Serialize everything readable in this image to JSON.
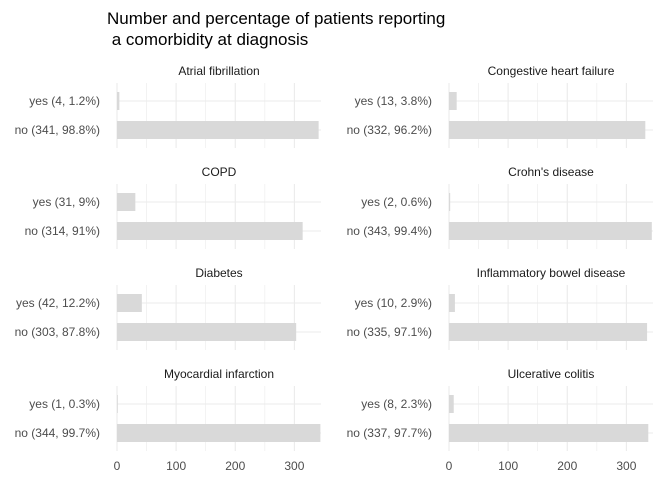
{
  "chart_data": {
    "type": "bar",
    "orientation": "horizontal",
    "title_lines": [
      "Number and percentage of patients reporting",
      " a comorbidity at diagnosis"
    ],
    "xlim": [
      0,
      345
    ],
    "x_ticks": [
      0,
      100,
      200,
      300
    ],
    "grid": true,
    "bar_color": "#d9d9d9",
    "grid_color": "#ebebeb",
    "facets": [
      {
        "name": "Atrial fibrillation",
        "bars": [
          {
            "label": "yes (4, 1.2%)",
            "value": 4
          },
          {
            "label": "no (341, 98.8%)",
            "value": 341
          }
        ]
      },
      {
        "name": "Congestive heart failure",
        "bars": [
          {
            "label": "yes (13, 3.8%)",
            "value": 13
          },
          {
            "label": "no (332, 96.2%)",
            "value": 332
          }
        ]
      },
      {
        "name": "COPD",
        "bars": [
          {
            "label": "yes (31, 9%)",
            "value": 31
          },
          {
            "label": "no (314, 91%)",
            "value": 314
          }
        ]
      },
      {
        "name": "Crohn's disease",
        "bars": [
          {
            "label": "yes (2, 0.6%)",
            "value": 2
          },
          {
            "label": "no (343, 99.4%)",
            "value": 343
          }
        ]
      },
      {
        "name": "Diabetes",
        "bars": [
          {
            "label": "yes (42, 12.2%)",
            "value": 42
          },
          {
            "label": "no (303, 87.8%)",
            "value": 303
          }
        ]
      },
      {
        "name": "Inflammatory bowel disease",
        "bars": [
          {
            "label": "yes (10, 2.9%)",
            "value": 10
          },
          {
            "label": "no (335, 97.1%)",
            "value": 335
          }
        ]
      },
      {
        "name": "Myocardial infarction",
        "bars": [
          {
            "label": "yes (1, 0.3%)",
            "value": 1
          },
          {
            "label": "no (344, 99.7%)",
            "value": 344
          }
        ]
      },
      {
        "name": "Ulcerative colitis",
        "bars": [
          {
            "label": "yes (8, 2.3%)",
            "value": 8
          },
          {
            "label": "no (337, 97.7%)",
            "value": 337
          }
        ]
      }
    ]
  }
}
